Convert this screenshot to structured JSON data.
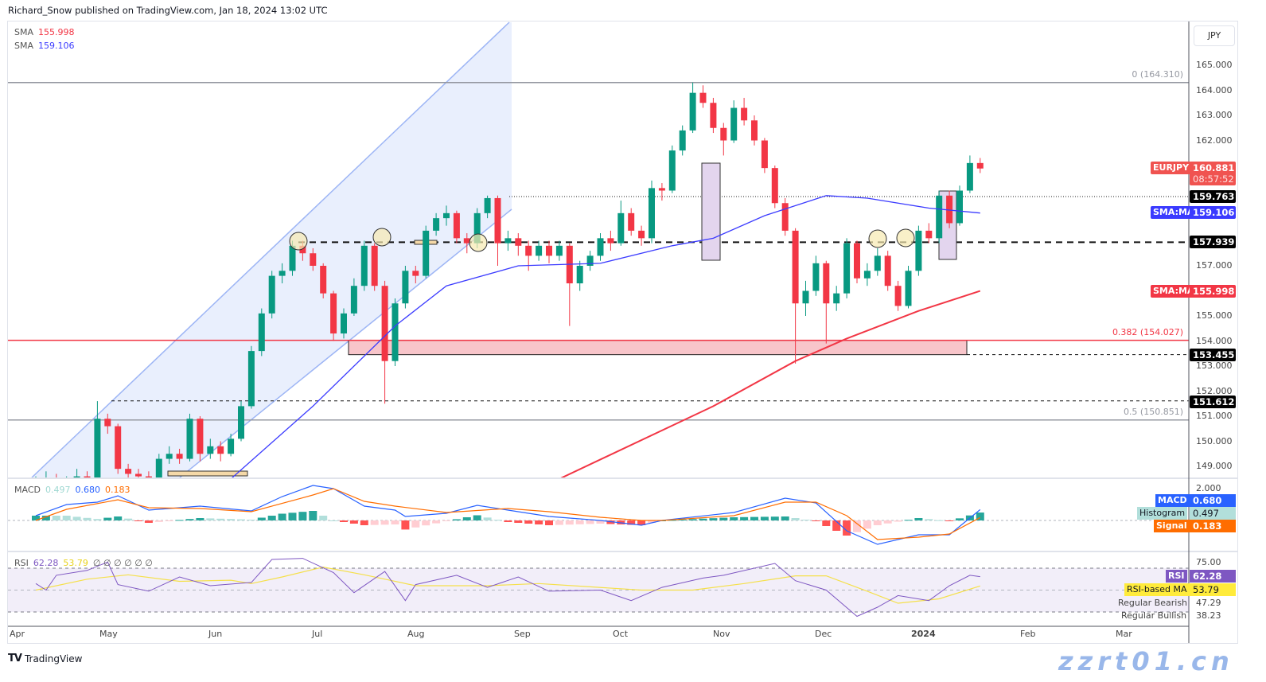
{
  "header": {
    "publisher": "Richard_Snow published on TradingView.com, Jan 18, 2024 13:02 UTC"
  },
  "legend": {
    "sma1": {
      "label": "SMA",
      "value": "155.998",
      "color": "#f23645"
    },
    "sma2": {
      "label": "SMA",
      "value": "159.106",
      "color": "#3b3bff"
    }
  },
  "price_axis": {
    "currency": "JPY",
    "ticks": [
      "165.000",
      "164.000",
      "163.000",
      "162.000",
      "157.000",
      "155.000",
      "154.000",
      "153.000",
      "152.000",
      "151.000",
      "150.000",
      "149.000"
    ],
    "tick_values": [
      165,
      164,
      163,
      162,
      157,
      155,
      154,
      153,
      152,
      151,
      150,
      149
    ]
  },
  "labels": {
    "symbol": "EURJPY",
    "last_price": "160.881",
    "countdown": "08:57:52",
    "level_159763": "159.763",
    "sma_tag": "SMA:MA",
    "sma50": "159.106",
    "level_157939": "157.939",
    "sma200": "155.998",
    "level_153455": "153.455",
    "level_151612": "151.612"
  },
  "fib": {
    "f0": "0 (164.310)",
    "f382": "0.382 (154.027)",
    "f5": "0.5 (150.851)"
  },
  "macd_pane": {
    "legend_name": "MACD",
    "hist": "0.497",
    "macd": "0.680",
    "signal": "0.183",
    "tick": "2.000",
    "tag_macd": "MACD",
    "tag_hist": "Histogram",
    "tag_signal": "Signal"
  },
  "rsi_pane": {
    "legend_name": "RSI",
    "rsi": "62.28",
    "rsi_ma": "53.79",
    "empty": "∅ ∅ ∅ ∅ ∅ ∅",
    "tick": "75.00",
    "tag_rsi": "RSI",
    "tag_ma": "RSI-based MA",
    "bearish_label": "Regular Bearish",
    "bearish": "47.29",
    "bullish_label": "Regular Bullish",
    "bullish": "38.23"
  },
  "time_axis": [
    "Apr",
    "May",
    "Jun",
    "Jul",
    "Aug",
    "Sep",
    "Oct",
    "Nov",
    "Dec",
    "2024",
    "Feb",
    "Mar"
  ],
  "footer": {
    "brand": "TradingView"
  },
  "watermark": "zzrt01.cn",
  "colors": {
    "up": "#089981",
    "down": "#f23645",
    "sma50": "#3b3bff",
    "sma200": "#f23645",
    "macd": "#2962ff",
    "signal": "#ff6d00",
    "rsi": "#7e57c2",
    "rsi_ma": "#f5e04a"
  },
  "chart_data": {
    "type": "candlestick",
    "symbol": "EURJPY",
    "ylim": [
      148.56,
      166
    ],
    "levels": {
      "fib_0": 164.31,
      "fib_0382": 154.027,
      "fib_05": 150.851,
      "resistance_dotted": 159.763,
      "support_dashed": 157.939,
      "zone": [
        153.455,
        154.027
      ],
      "dashed_low": 151.612
    },
    "candles": [
      [
        148.0,
        148.6,
        147.8,
        148.3
      ],
      [
        148.3,
        148.8,
        148.1,
        148.5
      ],
      [
        148.5,
        148.7,
        148.0,
        148.2
      ],
      [
        148.2,
        148.6,
        148.0,
        148.4
      ],
      [
        148.4,
        148.9,
        148.2,
        148.6
      ],
      [
        148.6,
        148.8,
        148.1,
        148.3
      ],
      [
        148.3,
        151.6,
        148.2,
        150.9
      ],
      [
        150.9,
        151.1,
        150.3,
        150.6
      ],
      [
        150.6,
        150.7,
        148.7,
        148.9
      ],
      [
        148.9,
        149.1,
        148.5,
        148.7
      ],
      [
        148.7,
        148.9,
        148.4,
        148.6
      ],
      [
        148.6,
        148.8,
        148.3,
        148.5
      ],
      [
        148.5,
        149.5,
        148.4,
        149.3
      ],
      [
        149.3,
        149.8,
        149.1,
        149.5
      ],
      [
        149.5,
        149.7,
        149.1,
        149.3
      ],
      [
        149.3,
        151.1,
        149.2,
        150.9
      ],
      [
        150.9,
        151.0,
        149.2,
        149.5
      ],
      [
        149.5,
        150.1,
        149.3,
        149.8
      ],
      [
        149.8,
        150.0,
        149.2,
        149.5
      ],
      [
        149.5,
        150.3,
        149.4,
        150.1
      ],
      [
        150.1,
        151.6,
        150.0,
        151.4
      ],
      [
        151.4,
        153.8,
        151.3,
        153.6
      ],
      [
        153.6,
        155.3,
        153.4,
        155.1
      ],
      [
        155.1,
        156.8,
        154.9,
        156.6
      ],
      [
        156.6,
        157.1,
        156.3,
        156.8
      ],
      [
        156.8,
        158.0,
        156.6,
        157.8
      ],
      [
        157.8,
        158.0,
        157.2,
        157.5
      ],
      [
        157.5,
        157.7,
        156.8,
        157.0
      ],
      [
        157.0,
        157.1,
        155.7,
        155.9
      ],
      [
        155.9,
        156.0,
        154.0,
        154.3
      ],
      [
        154.3,
        155.3,
        154.1,
        155.1
      ],
      [
        155.1,
        156.5,
        155.0,
        156.2
      ],
      [
        156.2,
        158.0,
        156.0,
        157.8
      ],
      [
        157.8,
        157.9,
        156.0,
        156.2
      ],
      [
        156.2,
        156.4,
        151.5,
        153.2
      ],
      [
        153.2,
        155.7,
        153.0,
        155.5
      ],
      [
        155.5,
        157.0,
        155.3,
        156.8
      ],
      [
        156.8,
        157.0,
        156.3,
        156.6
      ],
      [
        156.6,
        158.6,
        156.5,
        158.4
      ],
      [
        158.4,
        159.1,
        158.2,
        158.9
      ],
      [
        158.9,
        159.4,
        158.6,
        159.1
      ],
      [
        159.1,
        159.2,
        157.9,
        158.1
      ],
      [
        158.1,
        158.3,
        157.5,
        157.9
      ],
      [
        157.9,
        159.3,
        157.7,
        159.1
      ],
      [
        159.1,
        159.8,
        158.9,
        159.7
      ],
      [
        159.7,
        159.8,
        157.0,
        157.9
      ],
      [
        157.9,
        158.4,
        157.6,
        158.1
      ],
      [
        158.1,
        158.3,
        157.4,
        157.8
      ],
      [
        157.8,
        158.0,
        156.8,
        157.4
      ],
      [
        157.4,
        158.0,
        157.2,
        157.8
      ],
      [
        157.8,
        158.0,
        157.1,
        157.4
      ],
      [
        157.4,
        158.0,
        157.2,
        157.8
      ],
      [
        157.8,
        157.9,
        154.6,
        156.3
      ],
      [
        156.3,
        157.2,
        156.0,
        157.0
      ],
      [
        157.0,
        157.6,
        156.8,
        157.4
      ],
      [
        157.4,
        158.3,
        157.2,
        158.1
      ],
      [
        158.1,
        158.4,
        157.6,
        157.9
      ],
      [
        157.9,
        159.6,
        157.8,
        159.1
      ],
      [
        159.1,
        159.3,
        158.2,
        158.4
      ],
      [
        158.4,
        158.6,
        157.8,
        158.1
      ],
      [
        158.1,
        160.4,
        157.9,
        160.1
      ],
      [
        160.1,
        160.3,
        159.6,
        160.0
      ],
      [
        160.0,
        161.8,
        159.9,
        161.6
      ],
      [
        161.6,
        162.6,
        161.4,
        162.4
      ],
      [
        162.4,
        164.31,
        162.3,
        163.9
      ],
      [
        163.9,
        164.2,
        163.3,
        163.5
      ],
      [
        163.5,
        163.7,
        162.3,
        162.5
      ],
      [
        162.5,
        162.7,
        161.4,
        162.0
      ],
      [
        162.0,
        163.6,
        161.9,
        163.3
      ],
      [
        163.3,
        163.7,
        162.6,
        162.8
      ],
      [
        162.8,
        163.0,
        161.8,
        162.0
      ],
      [
        162.0,
        162.1,
        160.7,
        160.9
      ],
      [
        160.9,
        161.0,
        159.3,
        159.5
      ],
      [
        159.5,
        159.7,
        158.2,
        158.4
      ],
      [
        158.4,
        158.5,
        153.1,
        155.5
      ],
      [
        155.5,
        156.4,
        155.0,
        156.0
      ],
      [
        156.0,
        157.4,
        155.8,
        157.1
      ],
      [
        157.1,
        157.2,
        153.9,
        155.5
      ],
      [
        155.5,
        156.2,
        155.2,
        155.9
      ],
      [
        155.9,
        158.1,
        155.7,
        157.9
      ],
      [
        157.9,
        158.0,
        156.3,
        156.5
      ],
      [
        156.5,
        157.1,
        156.2,
        156.8
      ],
      [
        156.8,
        157.7,
        156.6,
        157.4
      ],
      [
        157.4,
        157.6,
        156.0,
        156.2
      ],
      [
        156.2,
        156.4,
        155.2,
        155.4
      ],
      [
        155.4,
        157.0,
        155.3,
        156.8
      ],
      [
        156.8,
        158.6,
        156.6,
        158.4
      ],
      [
        158.4,
        158.7,
        157.9,
        158.1
      ],
      [
        158.1,
        160.0,
        157.9,
        159.8
      ],
      [
        159.8,
        160.0,
        158.5,
        158.7
      ],
      [
        158.7,
        160.2,
        158.6,
        160.0
      ],
      [
        160.0,
        161.4,
        159.9,
        161.1
      ],
      [
        161.1,
        161.3,
        160.7,
        160.881
      ]
    ],
    "sma50": [
      [
        20,
        148.5
      ],
      [
        28,
        151.4
      ],
      [
        36,
        154.6
      ],
      [
        41,
        156.2
      ],
      [
        48,
        157.0
      ],
      [
        56,
        157.1
      ],
      [
        63,
        157.8
      ],
      [
        67,
        158.1
      ],
      [
        72,
        159.0
      ],
      [
        78,
        159.8
      ],
      [
        82,
        159.7
      ],
      [
        88,
        159.3
      ],
      [
        93,
        159.106
      ]
    ],
    "sma200": [
      [
        52,
        148.5
      ],
      [
        67,
        151.4
      ],
      [
        75,
        153.2
      ],
      [
        80,
        154.1
      ],
      [
        87,
        155.2
      ],
      [
        93,
        155.998
      ]
    ],
    "macd": {
      "ylim": [
        -2,
        2.6
      ],
      "macd": [
        [
          1,
          0.3
        ],
        [
          4,
          1.0
        ],
        [
          7,
          1.15
        ],
        [
          9,
          1.55
        ],
        [
          12,
          0.65
        ],
        [
          17,
          0.9
        ],
        [
          22,
          0.6
        ],
        [
          25,
          1.5
        ],
        [
          28,
          2.2
        ],
        [
          30,
          2.0
        ],
        [
          33,
          0.9
        ],
        [
          36,
          0.65
        ],
        [
          37,
          0.25
        ],
        [
          41,
          0.45
        ],
        [
          44,
          0.95
        ],
        [
          47,
          0.65
        ],
        [
          51,
          0.25
        ],
        [
          56,
          0
        ],
        [
          60,
          -0.3
        ],
        [
          62,
          0
        ],
        [
          69,
          0.5
        ],
        [
          74,
          1.4
        ],
        [
          77,
          1.1
        ],
        [
          80,
          -0.65
        ],
        [
          83,
          -1.5
        ],
        [
          87,
          -0.9
        ],
        [
          90,
          -0.9
        ],
        [
          93,
          0.68
        ]
      ],
      "signal": [
        [
          1,
          0.0
        ],
        [
          4,
          0.7
        ],
        [
          9,
          1.3
        ],
        [
          12,
          0.8
        ],
        [
          17,
          0.75
        ],
        [
          22,
          0.55
        ],
        [
          28,
          1.6
        ],
        [
          30,
          2.0
        ],
        [
          33,
          1.2
        ],
        [
          36,
          0.9
        ],
        [
          41,
          0.5
        ],
        [
          47,
          0.75
        ],
        [
          51,
          0.55
        ],
        [
          56,
          0.2
        ],
        [
          60,
          0.0
        ],
        [
          62,
          0.0
        ],
        [
          69,
          0.3
        ],
        [
          74,
          1.15
        ],
        [
          77,
          1.15
        ],
        [
          80,
          0.3
        ],
        [
          83,
          -1.2
        ],
        [
          87,
          -1.05
        ],
        [
          90,
          -0.85
        ],
        [
          93,
          0.183
        ]
      ]
    },
    "rsi": {
      "bands": [
        70,
        50,
        30
      ],
      "rsi": [
        [
          1,
          56
        ],
        [
          2,
          50
        ],
        [
          3,
          63.5
        ],
        [
          6,
          68
        ],
        [
          8,
          75.6
        ],
        [
          9,
          55
        ],
        [
          12,
          49
        ],
        [
          15,
          62
        ],
        [
          18,
          54
        ],
        [
          22,
          57
        ],
        [
          24,
          78
        ],
        [
          27,
          79
        ],
        [
          30,
          66
        ],
        [
          32,
          47.7
        ],
        [
          35,
          67
        ],
        [
          37,
          40.4
        ],
        [
          38,
          55
        ],
        [
          42,
          63.5
        ],
        [
          45,
          52.5
        ],
        [
          48,
          62
        ],
        [
          51,
          49
        ],
        [
          56,
          50
        ],
        [
          59,
          40.4
        ],
        [
          62,
          52.5
        ],
        [
          66,
          61
        ],
        [
          68,
          63.5
        ],
        [
          73,
          74.4
        ],
        [
          75,
          58.6
        ],
        [
          78,
          50
        ],
        [
          81,
          26
        ],
        [
          83,
          34.4
        ],
        [
          85,
          45
        ],
        [
          88,
          40.4
        ],
        [
          90,
          54
        ],
        [
          92,
          63.5
        ],
        [
          93,
          62.28
        ]
      ],
      "rsi_ma": [
        [
          1,
          50
        ],
        [
          6,
          60
        ],
        [
          10,
          64
        ],
        [
          15,
          58
        ],
        [
          20,
          59
        ],
        [
          22,
          56
        ],
        [
          25,
          62
        ],
        [
          29,
          71
        ],
        [
          33,
          64
        ],
        [
          38,
          54
        ],
        [
          45,
          54
        ],
        [
          50,
          56
        ],
        [
          55,
          53
        ],
        [
          60,
          50
        ],
        [
          65,
          50
        ],
        [
          70,
          56
        ],
        [
          75,
          63
        ],
        [
          78,
          63
        ],
        [
          82,
          49
        ],
        [
          85,
          38
        ],
        [
          89,
          42
        ],
        [
          93,
          53.79
        ]
      ]
    }
  }
}
